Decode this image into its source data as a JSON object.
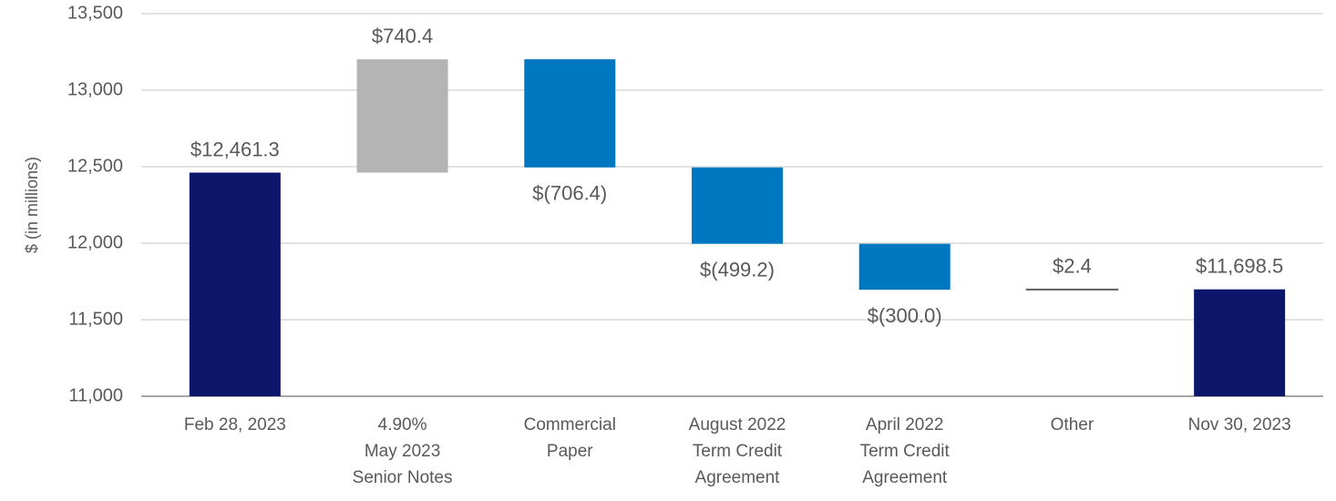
{
  "chart_data": {
    "type": "waterfall",
    "y_label": "$ (in millions)",
    "categories": [
      [
        "Feb 28, 2023"
      ],
      [
        "4.90%",
        "May 2023",
        "Senior Notes"
      ],
      [
        "Commercial",
        "Paper"
      ],
      [
        "August 2022",
        "Term Credit",
        "Agreement"
      ],
      [
        "April 2022",
        "Term Credit",
        "Agreement"
      ],
      [
        "Other"
      ],
      [
        "Nov 30, 2023"
      ]
    ],
    "values": [
      12461.3,
      740.4,
      -706.4,
      -499.2,
      -300.0,
      2.4,
      11698.5
    ],
    "value_labels": [
      "$12,461.3",
      "$740.4",
      "$(706.4)",
      "$(499.2)",
      "$(300.0)",
      "$2.4",
      "$11,698.5"
    ],
    "measure": [
      "total",
      "relative",
      "relative",
      "relative",
      "relative",
      "relative",
      "total"
    ],
    "colors": {
      "total": "#0c176b",
      "increase": "#b4b4b4",
      "decrease": "#0077c1",
      "small": "#595959"
    },
    "ylim": [
      11000,
      13500
    ],
    "yticks": [
      {
        "value": 11000,
        "label": "11,000"
      },
      {
        "value": 11500,
        "label": "11,500"
      },
      {
        "value": 12000,
        "label": "12,000"
      },
      {
        "value": 12500,
        "label": "12,500"
      },
      {
        "value": 13000,
        "label": "13,000"
      },
      {
        "value": 13500,
        "label": "13,500"
      }
    ],
    "grid": true
  }
}
